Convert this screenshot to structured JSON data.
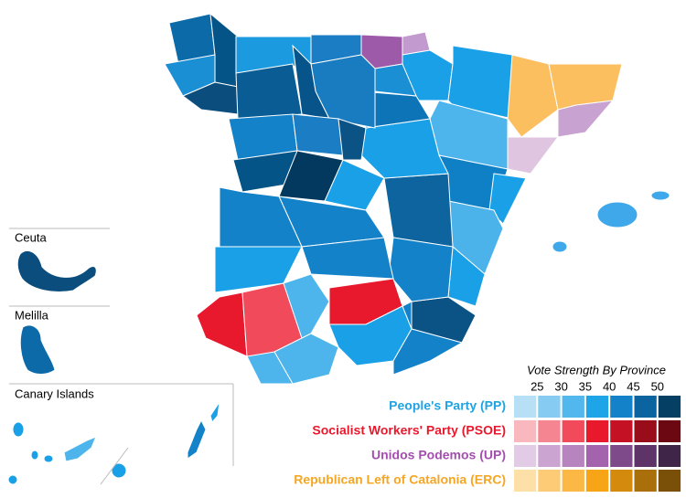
{
  "map": {
    "insets": [
      {
        "label": "Ceuta"
      },
      {
        "label": "Melilla"
      },
      {
        "label": "Canary Islands"
      }
    ],
    "legend": {
      "title": "Vote Strength By Province",
      "ticks": [
        25,
        30,
        35,
        40,
        45,
        50
      ],
      "parties": [
        {
          "name": "People's Party (PP)",
          "color": "#1fa3e3",
          "scale": [
            "#b7dff5",
            "#86ccf2",
            "#52b7ec",
            "#1ea5e8",
            "#1482c9",
            "#0b64a0",
            "#053f63"
          ]
        },
        {
          "name": "Socialist Workers' Party (PSOE)",
          "color": "#e8192c",
          "scale": [
            "#f9b8be",
            "#f58590",
            "#f04a5b",
            "#e8192c",
            "#c41224",
            "#990d1b",
            "#6b0812"
          ]
        },
        {
          "name": "Unidos Podemos (UP)",
          "color": "#a44fb0",
          "scale": [
            "#e2cbe4",
            "#cca4d1",
            "#b884bf",
            "#a464ad",
            "#7f4a8a",
            "#5e3468",
            "#3f2547"
          ]
        },
        {
          "name": "Republican Left of Catalonia (ERC)",
          "color": "#f5a623",
          "scale": [
            "#fde0a8",
            "#fdcb75",
            "#fbb845",
            "#f7a416",
            "#d48a0c",
            "#a96f0a",
            "#7a5008"
          ]
        }
      ]
    }
  }
}
